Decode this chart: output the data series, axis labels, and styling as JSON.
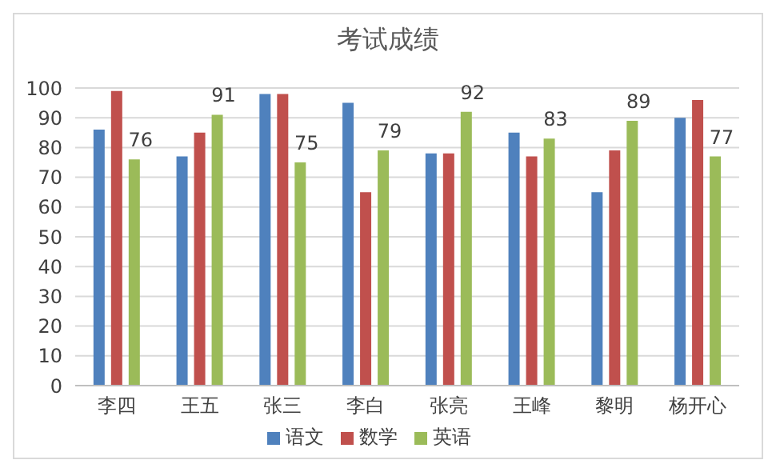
{
  "chart_data": {
    "type": "bar",
    "title": "考试成绩",
    "categories": [
      "李四",
      "王五",
      "张三",
      "李白",
      "张亮",
      "王峰",
      "黎明",
      "杨开心"
    ],
    "series": [
      {
        "name": "语文",
        "color": "#4f81bd",
        "values": [
          86,
          77,
          98,
          95,
          78,
          85,
          65,
          90
        ]
      },
      {
        "name": "数学",
        "color": "#c0504d",
        "values": [
          99,
          85,
          98,
          65,
          78,
          77,
          79,
          96
        ]
      },
      {
        "name": "英语",
        "color": "#9bbb59",
        "values": [
          76,
          91,
          75,
          79,
          92,
          83,
          89,
          77
        ],
        "value_labels": [
          "76",
          "91",
          "75",
          "79",
          "92",
          "83",
          "89",
          "77"
        ]
      }
    ],
    "ylim": [
      0,
      100
    ],
    "yticks": [
      0,
      10,
      20,
      30,
      40,
      50,
      60,
      70,
      80,
      90,
      100
    ],
    "grid": "y",
    "legend": "bottom"
  }
}
